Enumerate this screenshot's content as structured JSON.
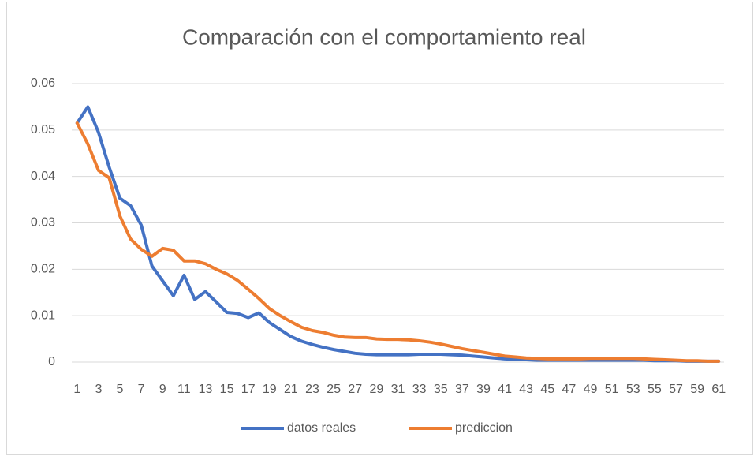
{
  "chart_data": {
    "type": "line",
    "title": "Comparación con el comportamiento real",
    "categories": [
      1,
      null,
      3,
      null,
      5,
      null,
      7,
      null,
      9,
      null,
      11,
      null,
      13,
      null,
      15,
      null,
      17,
      null,
      19,
      null,
      21,
      null,
      23,
      null,
      25,
      null,
      27,
      null,
      29,
      null,
      31,
      null,
      33,
      null,
      35,
      null,
      37,
      null,
      39,
      null,
      41,
      null,
      43,
      null,
      45,
      null,
      47,
      null,
      49,
      null,
      51,
      null,
      53,
      null,
      55,
      null,
      57,
      null,
      59,
      null,
      61
    ],
    "series": [
      {
        "name": "datos reales",
        "color": "#4472c4",
        "values": [
          0.0515,
          0.055,
          0.0495,
          0.042,
          0.0353,
          0.0337,
          0.0295,
          0.0207,
          0.0175,
          0.0143,
          0.0187,
          0.0135,
          0.0152,
          0.013,
          0.0107,
          0.0105,
          0.0096,
          0.0106,
          0.0085,
          0.007,
          0.0055,
          0.0045,
          0.0038,
          0.0032,
          0.0027,
          0.0023,
          0.0019,
          0.0017,
          0.0016,
          0.0016,
          0.0016,
          0.0016,
          0.0017,
          0.0017,
          0.0017,
          0.0016,
          0.0015,
          0.0013,
          0.0011,
          0.0009,
          0.0007,
          0.0006,
          0.0005,
          0.0004,
          0.0004,
          0.0004,
          0.0004,
          0.0004,
          0.0004,
          0.0004,
          0.0004,
          0.0004,
          0.0004,
          0.0004,
          0.0003,
          0.0003,
          0.0003,
          0.0002,
          0.0002,
          0.0002,
          0.0002
        ]
      },
      {
        "name": "prediccion",
        "color": "#ed7d31",
        "values": [
          0.0515,
          0.047,
          0.0413,
          0.0397,
          0.0315,
          0.0265,
          0.0243,
          0.0228,
          0.0245,
          0.0241,
          0.0218,
          0.0218,
          0.0212,
          0.02,
          0.019,
          0.0176,
          0.0157,
          0.0137,
          0.0115,
          0.01,
          0.0087,
          0.0075,
          0.0068,
          0.0064,
          0.0058,
          0.0054,
          0.0053,
          0.0053,
          0.005,
          0.0049,
          0.0049,
          0.0048,
          0.0046,
          0.0043,
          0.0039,
          0.0034,
          0.0029,
          0.0025,
          0.0021,
          0.0017,
          0.0013,
          0.0011,
          0.0009,
          0.0008,
          0.0007,
          0.0007,
          0.0007,
          0.0007,
          0.0008,
          0.0008,
          0.0008,
          0.0008,
          0.0008,
          0.0007,
          0.0006,
          0.0005,
          0.0004,
          0.0003,
          0.0003,
          0.0002,
          0.0002
        ]
      }
    ],
    "ylim": [
      0,
      0.06
    ],
    "yticks": [
      0,
      0.01,
      0.02,
      0.03,
      0.04,
      0.05,
      0.06
    ],
    "grid": true,
    "legend": "bottom"
  }
}
